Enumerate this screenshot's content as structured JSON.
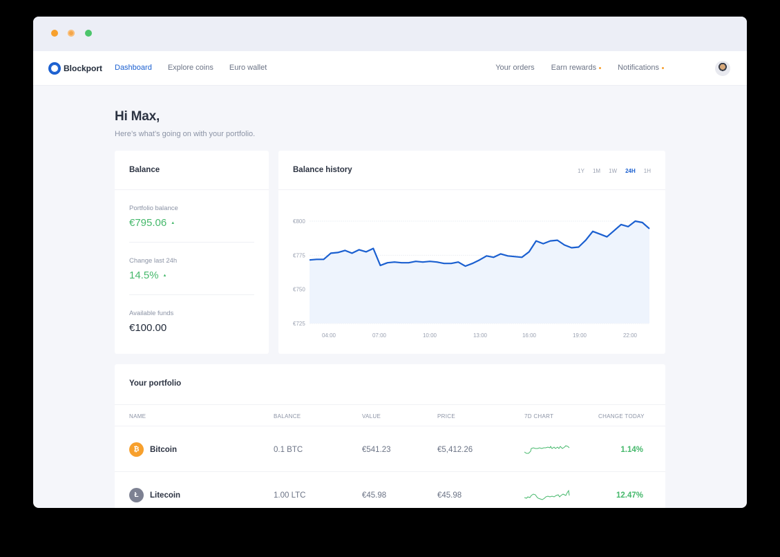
{
  "window": {
    "traffic_lights": [
      "close",
      "minimize",
      "maximize"
    ]
  },
  "nav": {
    "brand": "Blockport",
    "left_links": [
      {
        "label": "Dashboard",
        "active": true
      },
      {
        "label": "Explore coins",
        "active": false
      },
      {
        "label": "Euro wallet",
        "active": false
      }
    ],
    "right_links": [
      {
        "label": "Your orders",
        "dot": false
      },
      {
        "label": "Earn rewards",
        "dot": true
      },
      {
        "label": "Notifications",
        "dot": true
      }
    ],
    "avatar": "user-avatar"
  },
  "header": {
    "greeting": "Hi Max,",
    "subtitle": "Here’s what’s going on with your portfolio."
  },
  "balance": {
    "title": "Balance",
    "stats": [
      {
        "label": "Portfolio balance",
        "value": "€795.06",
        "trend": "up"
      },
      {
        "label": "Change last 24h",
        "value": "14.5%",
        "trend": "up"
      },
      {
        "label": "Available funds",
        "value": "€100.00",
        "trend": null
      }
    ],
    "up_symbol": "▲"
  },
  "history": {
    "title": "Balance history",
    "ranges": [
      {
        "label": "1Y",
        "active": false
      },
      {
        "label": "1M",
        "active": false
      },
      {
        "label": "1W",
        "active": false
      },
      {
        "label": "24H",
        "active": true
      },
      {
        "label": "1H",
        "active": false
      }
    ]
  },
  "chart_data": {
    "type": "area",
    "title": "Balance history",
    "xlabel": "",
    "ylabel": "",
    "y_ticks": [
      "€800",
      "€775",
      "€750",
      "€725"
    ],
    "ylim": [
      725,
      800
    ],
    "x_ticks": [
      "04:00",
      "07:00",
      "10:00",
      "13:00",
      "16:00",
      "19:00",
      "22:00"
    ],
    "grid": true,
    "color": "#1a5fd0",
    "fill": "#eef4fd",
    "values": [
      771.5,
      772,
      772,
      776.5,
      777,
      778.5,
      776.5,
      779,
      777.5,
      780,
      767.5,
      769.5,
      770,
      769.5,
      769.5,
      770.5,
      770,
      770.5,
      770,
      769,
      769,
      770,
      767,
      769,
      771.5,
      774.5,
      773.5,
      776,
      774.5,
      774,
      773.5,
      777.5,
      785.5,
      783.5,
      785.5,
      786,
      782.5,
      780.5,
      781,
      786,
      792.5,
      790.5,
      788.5,
      793,
      797.5,
      796,
      800,
      799,
      794.5
    ]
  },
  "portfolio": {
    "title": "Your portfolio",
    "columns": [
      "NAME",
      "BALANCE",
      "VALUE",
      "PRICE",
      "7D CHART",
      "CHANGE TODAY"
    ],
    "rows": [
      {
        "icon": "bitcoin-icon",
        "icon_glyph": "₿",
        "icon_color": "#f7a02d",
        "name": "Bitcoin",
        "balance": "0.1 BTC",
        "value": "€541.23",
        "price": "€5,412.26",
        "change": "1.14%"
      },
      {
        "icon": "litecoin-icon",
        "icon_glyph": "Ł",
        "icon_color": "#7d8192",
        "name": "Litecoin",
        "balance": "1.00 LTC",
        "value": "€45.98",
        "price": "€45.98",
        "change": "12.47%"
      }
    ]
  }
}
